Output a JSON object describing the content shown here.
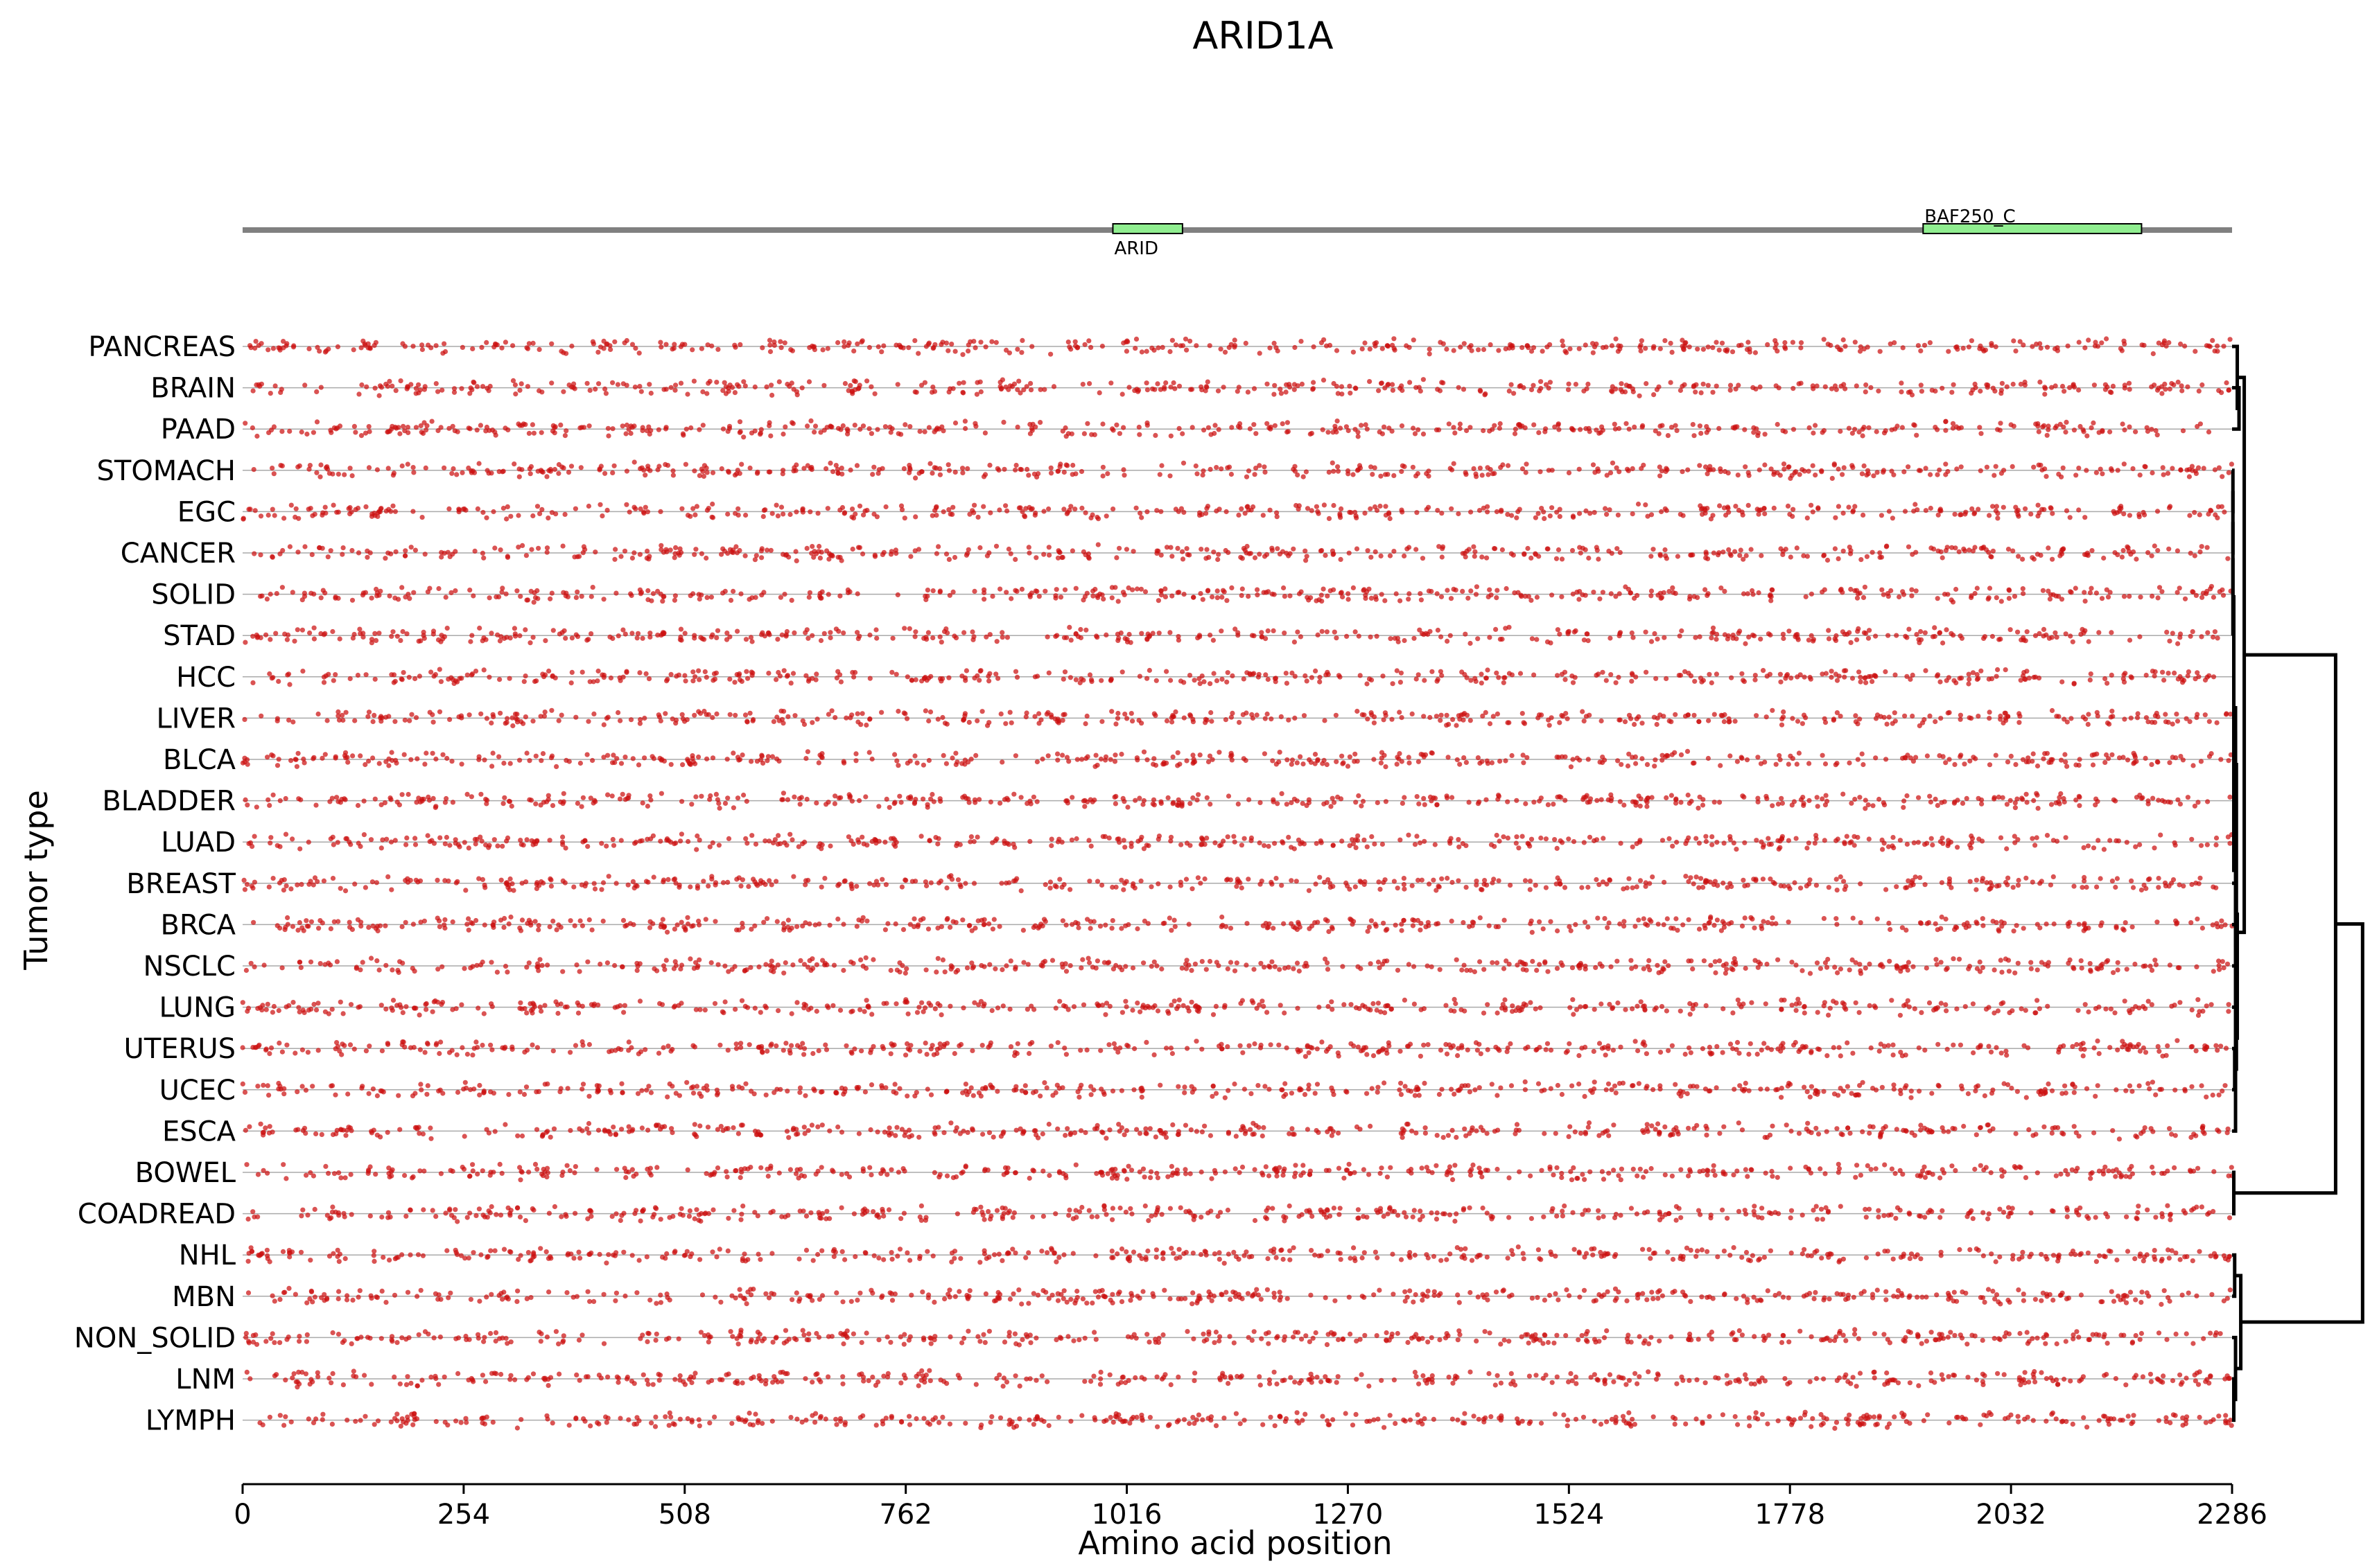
{
  "chart_data": {
    "type": "scatter",
    "title": "ARID1A",
    "xlabel": "Amino acid position",
    "ylabel": "Tumor type",
    "xlim": [
      0,
      2286
    ],
    "x_ticks": [
      0,
      254,
      508,
      762,
      1016,
      1270,
      1524,
      1778,
      2032,
      2286
    ],
    "categories": [
      "PANCREAS",
      "BRAIN",
      "PAAD",
      "STOMACH",
      "EGC",
      "CANCER",
      "SOLID",
      "STAD",
      "HCC",
      "LIVER",
      "BLCA",
      "BLADDER",
      "LUAD",
      "BREAST",
      "BRCA",
      "NSCLC",
      "LUNG",
      "UTERUS",
      "UCEC",
      "ESCA",
      "BOWEL",
      "COADREAD",
      "NHL",
      "MBN",
      "NON_SOLID",
      "LNM",
      "LYMPH"
    ],
    "protein_length": 2286,
    "domains": [
      {
        "name": "ARID",
        "start": 1000,
        "end": 1080
      },
      {
        "name": "BAF250_C",
        "start": 1931,
        "end": 2182
      }
    ],
    "point_color": "#cc1111",
    "domain_color": "#90ee90",
    "grid": false,
    "dendrogram": {
      "position": "right",
      "tips": [
        {
          "row": 0,
          "x": 2286
        },
        {
          "row": 1,
          "x": 2286
        },
        {
          "row": 2,
          "x": 2286
        },
        {
          "row": 3,
          "x": 2286
        },
        {
          "row": 4,
          "x": 2286
        },
        {
          "row": 5,
          "x": 2286
        },
        {
          "row": 6,
          "x": 2286
        },
        {
          "row": 7,
          "x": 2286
        },
        {
          "row": 8,
          "x": 2286
        },
        {
          "row": 9,
          "x": 2286
        },
        {
          "row": 10,
          "x": 2286
        },
        {
          "row": 11,
          "x": 2286
        },
        {
          "row": 12,
          "x": 2286
        },
        {
          "row": 13,
          "x": 2286
        },
        {
          "row": 14,
          "x": 2286
        },
        {
          "row": 15,
          "x": 2286
        },
        {
          "row": 16,
          "x": 2286
        },
        {
          "row": 17,
          "x": 2286
        },
        {
          "row": 18,
          "x": 2286
        },
        {
          "row": 19,
          "x": 2286
        },
        {
          "row": 20,
          "x": 2286
        },
        {
          "row": 21,
          "x": 2286
        },
        {
          "row": 22,
          "x": 2286
        },
        {
          "row": 23,
          "x": 2286
        },
        {
          "row": 24,
          "x": 2286
        },
        {
          "row": 25,
          "x": 2286
        },
        {
          "row": 26,
          "x": 2286
        }
      ],
      "nodes": [
        {
          "x": 2294,
          "a": 1,
          "b": 2
        },
        {
          "x": 2292,
          "a": 0,
          "b": 27
        },
        {
          "x": 2287,
          "a": 3,
          "b": 4
        },
        {
          "x": 2287,
          "a": 29,
          "b": 5
        },
        {
          "x": 2287,
          "a": 30,
          "b": 6
        },
        {
          "x": 2287,
          "a": 31,
          "b": 7
        },
        {
          "x": 2289,
          "a": 9,
          "b": 10
        },
        {
          "x": 2288,
          "a": 8,
          "b": 33
        },
        {
          "x": 2289,
          "a": 11,
          "b": 12
        },
        {
          "x": 2290,
          "a": 34,
          "b": 35
        },
        {
          "x": 2291,
          "a": 14,
          "b": 15
        },
        {
          "x": 2290,
          "a": 13,
          "b": 37
        },
        {
          "x": 2289,
          "a": 17,
          "b": 18
        },
        {
          "x": 2291,
          "a": 16,
          "b": 39
        },
        {
          "x": 2292,
          "a": 38,
          "b": 40
        },
        {
          "x": 2291,
          "a": 36,
          "b": 41
        },
        {
          "x": 2288,
          "a": 32,
          "b": 42
        },
        {
          "x": 2290,
          "a": 43,
          "b": 19
        },
        {
          "x": 2300,
          "a": 28,
          "b": 44
        },
        {
          "x": 2288,
          "a": 20,
          "b": 21
        },
        {
          "x": 2405,
          "a": 45,
          "b": 46
        },
        {
          "x": 2289,
          "a": 22,
          "b": 23
        },
        {
          "x": 2288,
          "a": 25,
          "b": 26
        },
        {
          "x": 2290,
          "a": 24,
          "b": 49
        },
        {
          "x": 2296,
          "a": 48,
          "b": 50
        },
        {
          "x": 2436,
          "a": 47,
          "b": 51
        }
      ]
    }
  }
}
